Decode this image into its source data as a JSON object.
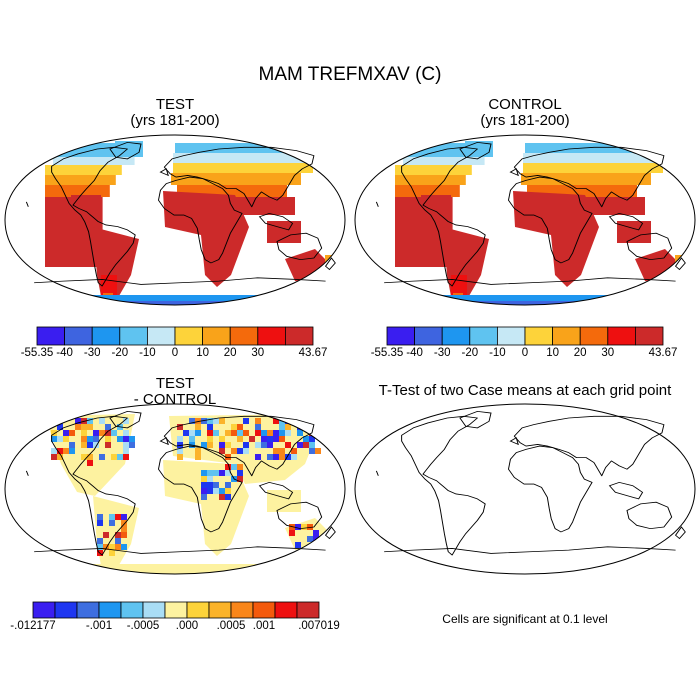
{
  "figure": {
    "title": "MAM TREFMXAV (C)"
  },
  "panels": {
    "test": {
      "title": "TEST",
      "subtitle": "(yrs 181-200)"
    },
    "control": {
      "title": "CONTROL",
      "subtitle": "(yrs 181-200)"
    },
    "diff": {
      "title": "TEST",
      "subtitle": "- CONTROL"
    },
    "ttest": {
      "title": "T-Test of two Case means at each grid point",
      "note": "Cells are significant at 0.1 level"
    }
  },
  "colorbars": {
    "field": {
      "colors": [
        "#3a1ef0",
        "#3e64e0",
        "#1e96f0",
        "#5fc3f0",
        "#c6e8f5",
        "#fdd33a",
        "#f9a31a",
        "#f46a0c",
        "#ee1010",
        "#cc2a2a"
      ],
      "labels": [
        "-55.35",
        "-40",
        "-30",
        "-20",
        "-10",
        "0",
        "10",
        "20",
        "30",
        "43.67"
      ]
    },
    "diff": {
      "colors": [
        "#3a1ef0",
        "#1e36f0",
        "#3e6ee0",
        "#1e96f0",
        "#5fc3f0",
        "#a9ddf5",
        "#fdf2a0",
        "#fdd33a",
        "#fbb32a",
        "#f9861a",
        "#f45a0c",
        "#ee1010",
        "#cc2a2a"
      ],
      "labels": [
        "-.012177",
        "-.001",
        "-.0005",
        ".000",
        ".0005",
        ".001",
        ".007019"
      ]
    }
  },
  "chart_data": {
    "type": "heatmap",
    "projection": "Robinson",
    "variable": "TREFMXAV",
    "units": "C",
    "season": "MAM",
    "panels": [
      "TEST (yrs 181-200)",
      "CONTROL (yrs 181-200)",
      "TEST - CONTROL",
      "T-Test of two Case means at each grid point"
    ],
    "field_range": [
      -55.35,
      43.67
    ],
    "field_levels": [
      -40,
      -30,
      -20,
      -10,
      0,
      10,
      20,
      30
    ],
    "diff_range": [
      -0.012177,
      0.007019
    ],
    "diff_levels": [
      -0.001,
      -0.0005,
      0.0,
      0.0005,
      0.001
    ],
    "significance_level": 0.1
  }
}
